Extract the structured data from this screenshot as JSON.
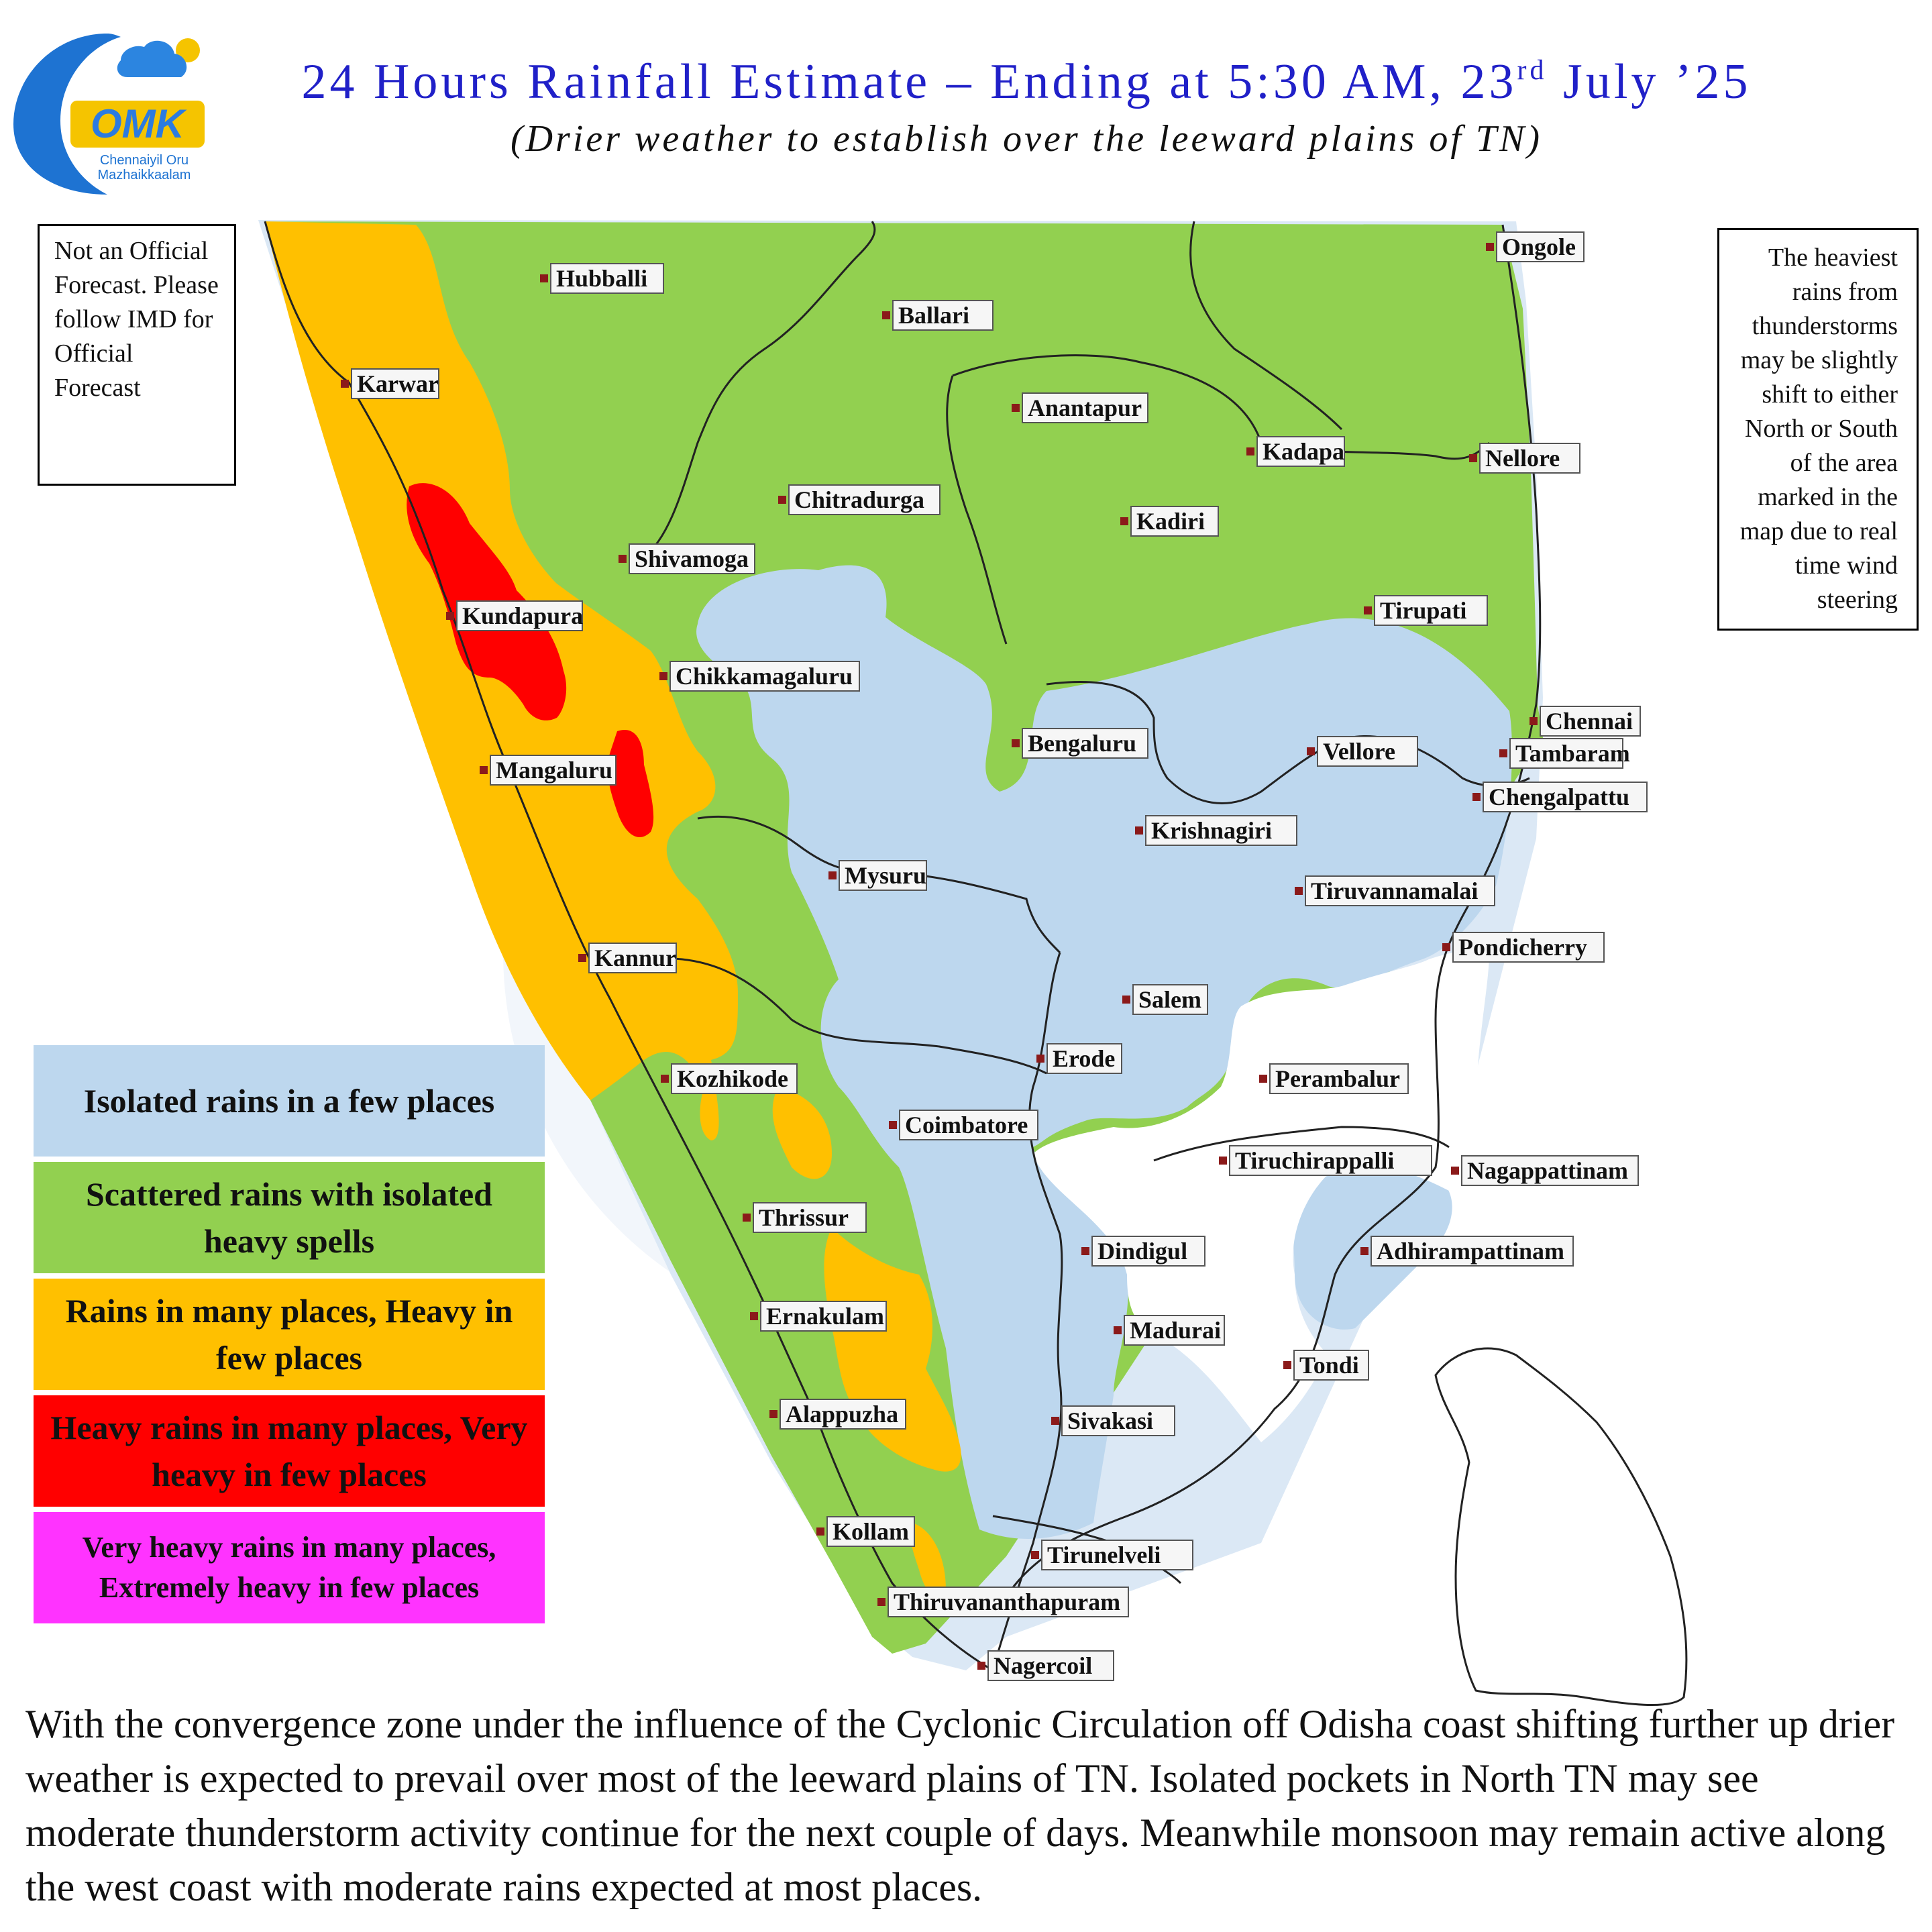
{
  "logo": {
    "icon": "omk-logo-icon",
    "text": "OMK",
    "tagline_1": "Chennaiyil Oru",
    "tagline_2": "Mazhaikkaalam"
  },
  "title": {
    "main_before": "24 Hours Rainfall Estimate – Ending at 5:30 AM, 23",
    "main_sup": "rd",
    "main_after": " July ’25",
    "subtitle": "(Drier weather to establish over the leeward plains of  TN)"
  },
  "notes": {
    "left": "Not an Official Forecast. Please follow IMD for Official Forecast",
    "right": "The heaviest rains from thunderstorms may be slightly shift to either North or South of the area marked in the map due to real time wind steering"
  },
  "legend": [
    {
      "label": "Isolated rains in a few places",
      "color": "#bdd7ee"
    },
    {
      "label": "Scattered rains with isolated heavy spells",
      "color": "#92d050"
    },
    {
      "label": "Rains in many places, Heavy in few places",
      "color": "#ffc000"
    },
    {
      "label": "Heavy rains in many places, Very heavy in few places",
      "color": "#ff0000"
    },
    {
      "label": "Very heavy rains in many places, Extremely heavy in few places",
      "color": "#ff33ff"
    }
  ],
  "cities": [
    "Hubballi",
    "Ballari",
    "Ongole",
    "Karwar",
    "Anantapur",
    "Kadapa",
    "Nellore",
    "Chitradurga",
    "Kadiri",
    "Shivamoga",
    "Tirupati",
    "Kundapura",
    "Chikkamagaluru",
    "Chennai",
    "Tambaram",
    "Bengaluru",
    "Vellore",
    "Mangaluru",
    "Chengalpattu",
    "Krishnagiri",
    "Mysuru",
    "Tiruvannamalai",
    "Pondicherry",
    "Kannur",
    "Salem",
    "Erode",
    "Kozhikode",
    "Perambalur",
    "Coimbatore",
    "Tiruchirappalli",
    "Nagappattinam",
    "Thrissur",
    "Dindigul",
    "Adhirampattinam",
    "Ernakulam",
    "Madurai",
    "Tondi",
    "Alappuzha",
    "Sivakasi",
    "Kollam",
    "Tirunelveli",
    "Thiruvananthapuram",
    "Nagercoil"
  ],
  "paragraph": "With the convergence zone under the influence of  the Cyclonic Circulation off  Odisha coast shifting further up drier weather is expected to prevail over most of  the leeward plains of  TN. Isolated pockets in North TN may see moderate thunderstorm activity continue for the next couple of  days. Meanwhile monsoon may remain active along the west coast with moderate rains expected at most places."
}
